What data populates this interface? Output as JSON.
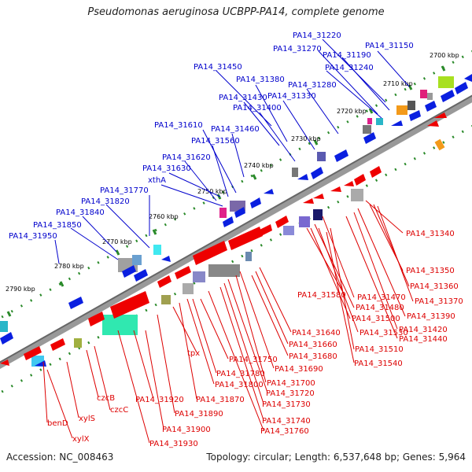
{
  "title": "Pseudomonas aeruginosa UCBPP-PA14, complete genome",
  "footer": {
    "accession": "Accession: NC_008463",
    "summary": "Topology: circular; Length: 6,537,648 bp; Genes: 5,964"
  },
  "colors": {
    "forward_label": "#0000cc",
    "reverse_label": "#dd0000",
    "backbone": "#888888",
    "tick": "#2a8a2a",
    "forward_gene": "#0a1fe0",
    "reverse_gene": "#ee0000"
  },
  "kbp_ticks": [
    "2700 kbp",
    "2710 kbp",
    "2720 kbp",
    "2730 kbp",
    "2740 kbp",
    "2750 kbp",
    "2760 kbp",
    "2770 kbp",
    "2780 kbp",
    "2790 kbp"
  ],
  "forward_labels": [
    "PA14_31220",
    "PA14_31150",
    "PA14_31270",
    "PA14_31190",
    "PA14_31240",
    "PA14_31450",
    "PA14_31380",
    "PA14_31280",
    "PA14_31430",
    "PA14_31330",
    "PA14_31400",
    "PA14_31610",
    "PA14_31460",
    "PA14_31560",
    "PA14_31620",
    "PA14_31630",
    "xthA",
    "PA14_31770",
    "PA14_31820",
    "PA14_31840",
    "PA14_31850",
    "PA14_31950"
  ],
  "reverse_labels": [
    "PA14_31340",
    "PA14_31350",
    "PA14_31360",
    "PA14_31370",
    "PA14_31580",
    "PA14_31470",
    "PA14_31390",
    "PA14_31480",
    "PA14_31500",
    "PA14_31420",
    "PA14_31440",
    "PA14_31530",
    "PA14_31640",
    "PA14_31510",
    "PA14_31660",
    "PA14_31680",
    "PA14_31540",
    "tpx",
    "PA14_31750",
    "PA14_31690",
    "PA14_31780",
    "PA14_31700",
    "PA14_31800",
    "PA14_31720",
    "czcB",
    "PA14_31920",
    "PA14_31870",
    "PA14_31730",
    "czcC",
    "PA14_31890",
    "PA14_31740",
    "benD",
    "xylS",
    "PA14_31900",
    "PA14_31760",
    "xylX",
    "PA14_31930"
  ]
}
